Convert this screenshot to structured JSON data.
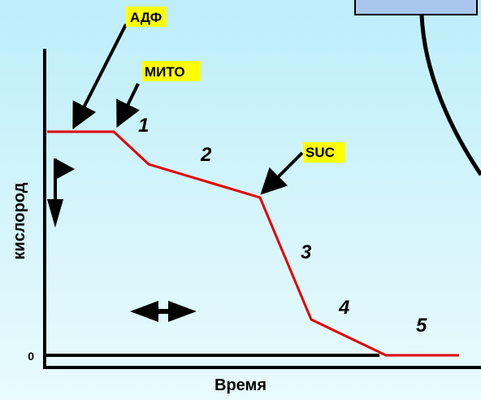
{
  "labels": {
    "adp": "АДФ",
    "mito": "МИТО",
    "suc": "SUC"
  },
  "phases": [
    "1",
    "2",
    "3",
    "4",
    "5"
  ],
  "axes": {
    "y_title": "кислород",
    "x_title": "Время",
    "zero": "0"
  }
}
